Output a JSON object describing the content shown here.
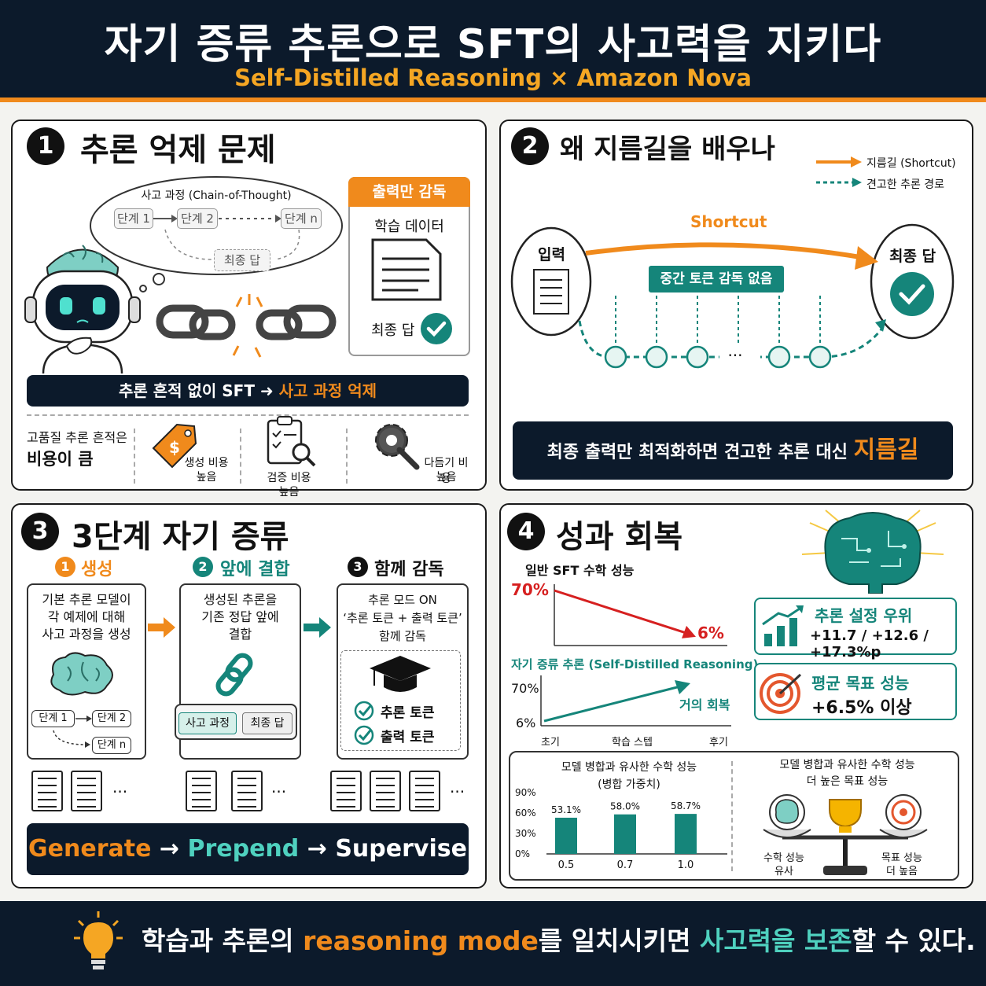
{
  "header": {
    "title": "자기 증류 추론으로 SFT의 사고력을 지키다",
    "subtitle": "Self-Distilled Reasoning × Amazon Nova"
  },
  "panel1": {
    "number": "1",
    "title": "추론 억제 문제",
    "cloud_title": "사고 과정 (Chain-of-Thought)",
    "steps": [
      "단계 1",
      "단계 2",
      "단계 n"
    ],
    "final_answer": "최종 답",
    "supervision_box": {
      "header": "출력만 감독",
      "data_label": "학습 데이터",
      "answer_label": "최종 답"
    },
    "bar_left": "추론 흔적 없이 SFT",
    "bar_right": "사고 과정 억제",
    "cost_note_line1": "고품질 추론 흔적은",
    "cost_note_line2": "비용이 큼",
    "costs": [
      {
        "line1": "생성 비용",
        "line2": "높음"
      },
      {
        "line1": "검증 비용",
        "line2": "높음"
      },
      {
        "line1": "다듬기 비용",
        "line2": "높음"
      }
    ]
  },
  "panel2": {
    "number": "2",
    "title": "왜 지름길을 배우나",
    "legend_shortcut": "지름길 (Shortcut)",
    "legend_robust": "견고한 추론 경로",
    "input_label": "입력",
    "output_label": "최종 답",
    "shortcut_label": "Shortcut",
    "no_supervision": "중간 토큰 감독 없음",
    "ellipsis": "···",
    "bar_text": "최종 출력만 최적화하면 견고한 추론 대신",
    "bar_highlight": "지름길"
  },
  "panel3": {
    "number": "3",
    "title": "3단계 자기 증류",
    "stages": [
      {
        "num": "1",
        "name": "생성",
        "text": [
          "기본 추론 모델이",
          "각 예제에 대해",
          "사고 과정을 생성"
        ]
      },
      {
        "num": "2",
        "name": "앞에 결합",
        "text": [
          "생성된 추론을",
          "기존 정답 앞에",
          "결합"
        ]
      },
      {
        "num": "3",
        "name": "함께 감독",
        "text": [
          "추론 모드 ON",
          "‘추론 토큰 + 출력 토큰’",
          "함께 감독"
        ]
      }
    ],
    "mini_steps": [
      "단계 1",
      "단계 2",
      "단계 n"
    ],
    "combine_chips": [
      "사고 과정",
      "최종 답"
    ],
    "checks": [
      "추론 토큰",
      "출력 토큰"
    ],
    "ellipsis": "···",
    "pipeline": [
      "Generate",
      "→",
      "Prepend",
      "→",
      "Supervise"
    ]
  },
  "panel4": {
    "number": "4",
    "title": "성과 회복",
    "chart1_title": "일반 SFT 수학 성능",
    "chart2_title": "자기 증류 추론 (Self-Distilled Reasoning)",
    "recover_label": "거의 회복",
    "x_start": "초기",
    "x_mid": "학습 스텝",
    "x_end": "후기",
    "card1_title": "추론 설정 우위",
    "card1_value": "+11.7 / +12.6 / +17.3%p",
    "card2_title": "평균 목표 성능",
    "card2_value": "+6.5% 이상",
    "bar_title_line1": "모델 병합과 유사한 수학 성능",
    "bar_title_line2": "(병합 가중치)",
    "scale_title_line1": "모델 병합과 유사한 수학 성능",
    "scale_title_line2": "더 높은 목표 성능",
    "scale_left_line1": "수학 성능",
    "scale_left_line2": "유사",
    "scale_right_line1": "목표 성능",
    "scale_right_line2": "더 높음"
  },
  "chart_data": [
    {
      "type": "line",
      "title": "일반 SFT 수학 성능",
      "x": [
        "초기",
        "후기"
      ],
      "series": [
        {
          "values": [
            70,
            6
          ]
        }
      ],
      "labels": [
        "70%",
        "6%"
      ],
      "color": "#d62020"
    },
    {
      "type": "line",
      "title": "자기 증류 추론 (Self-Distilled Reasoning)",
      "x": [
        "초기",
        "학습 스텝",
        "후기"
      ],
      "yticks": [
        "70%",
        "6%"
      ],
      "annotation": "거의 회복",
      "color": "#15857a"
    },
    {
      "type": "bar",
      "title": "모델 병합과 유사한 수학 성능",
      "subtitle": "(병합 가중치)",
      "categories": [
        "0.5",
        "0.7",
        "1.0"
      ],
      "values": [
        53.1,
        58.0,
        58.7
      ],
      "value_labels": [
        "53.1%",
        "58.0%",
        "58.7%"
      ],
      "yticks": [
        "90%",
        "60%",
        "30%",
        "0%"
      ],
      "ylim": [
        0,
        90
      ],
      "color": "#15857a"
    }
  ],
  "footer": {
    "part1": "학습과 추론의 ",
    "part2": "reasoning mode",
    "part3": "를 일치시키면 ",
    "part4": "사고력을 보존",
    "part5": "할 수 있다."
  },
  "colors": {
    "navy": "#0c1a2b",
    "orange": "#f08a1c",
    "teal": "#15857a",
    "red": "#d62020"
  }
}
